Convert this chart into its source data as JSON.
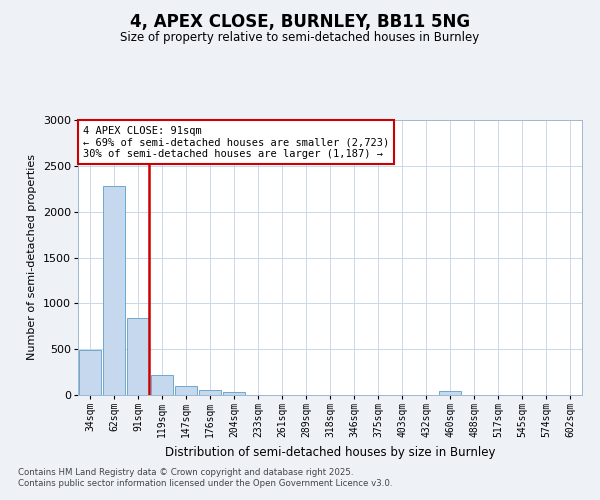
{
  "title": "4, APEX CLOSE, BURNLEY, BB11 5NG",
  "subtitle": "Size of property relative to semi-detached houses in Burnley",
  "xlabel": "Distribution of semi-detached houses by size in Burnley",
  "ylabel": "Number of semi-detached properties",
  "categories": [
    "34sqm",
    "62sqm",
    "91sqm",
    "119sqm",
    "147sqm",
    "176sqm",
    "204sqm",
    "233sqm",
    "261sqm",
    "289sqm",
    "318sqm",
    "346sqm",
    "375sqm",
    "403sqm",
    "432sqm",
    "460sqm",
    "488sqm",
    "517sqm",
    "545sqm",
    "574sqm",
    "602sqm"
  ],
  "values": [
    490,
    2280,
    840,
    220,
    100,
    60,
    30,
    0,
    0,
    0,
    0,
    0,
    0,
    0,
    0,
    40,
    0,
    0,
    0,
    0,
    0
  ],
  "bar_color": "#c5d8ed",
  "bar_edge_color": "#5a9fc8",
  "highlight_index": 2,
  "highlight_color": "#cc0000",
  "annotation_text": "4 APEX CLOSE: 91sqm\n← 69% of semi-detached houses are smaller (2,723)\n30% of semi-detached houses are larger (1,187) →",
  "annotation_box_color": "#cc0000",
  "ylim": [
    0,
    3000
  ],
  "yticks": [
    0,
    500,
    1000,
    1500,
    2000,
    2500,
    3000
  ],
  "footer_line1": "Contains HM Land Registry data © Crown copyright and database right 2025.",
  "footer_line2": "Contains public sector information licensed under the Open Government Licence v3.0.",
  "bg_color": "#eef2f7",
  "plot_bg_color": "#ffffff",
  "grid_color": "#c8d8e8"
}
